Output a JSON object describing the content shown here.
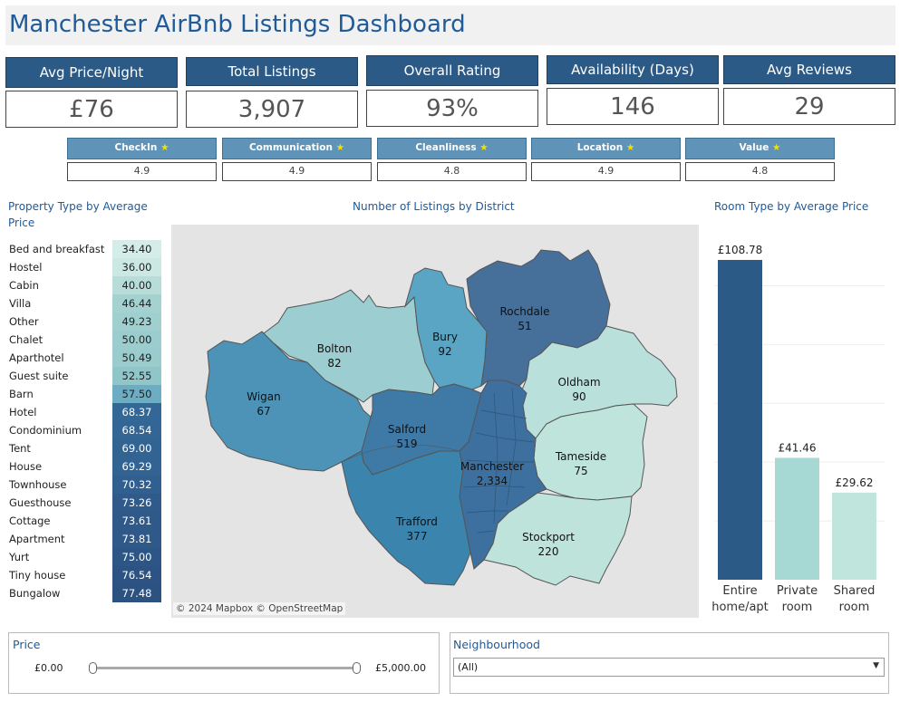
{
  "title": "Manchester AirBnb Listings Dashboard",
  "kpis": [
    {
      "label": "Avg Price/Night",
      "value": "£76"
    },
    {
      "label": "Total Listings",
      "value": "3,907"
    },
    {
      "label": "Overall Rating",
      "value": "93%"
    },
    {
      "label": "Availability (Days)",
      "value": "146"
    },
    {
      "label": "Avg Reviews",
      "value": "29"
    }
  ],
  "subratings": [
    {
      "label": "CheckIn",
      "value": "4.9"
    },
    {
      "label": "Communication",
      "value": "4.9"
    },
    {
      "label": "Cleanliness",
      "value": "4.8"
    },
    {
      "label": "Location",
      "value": "4.9"
    },
    {
      "label": "Value",
      "value": "4.8"
    }
  ],
  "star_glyph": "★",
  "property_section": {
    "title_line1": "Property Type by Average",
    "title_line2": "Price",
    "rows": [
      {
        "label": "Bed and breakfast",
        "value": "34.40",
        "color": "#d4ede8"
      },
      {
        "label": "Hostel",
        "value": "36.00",
        "color": "#cbe8e3"
      },
      {
        "label": "Cabin",
        "value": "40.00",
        "color": "#b8ddd9"
      },
      {
        "label": "Villa",
        "value": "46.44",
        "color": "#a3d2d1"
      },
      {
        "label": "Other",
        "value": "49.23",
        "color": "#a0cfcf"
      },
      {
        "label": "Chalet",
        "value": "50.00",
        "color": "#9ccdce"
      },
      {
        "label": "Aparthotel",
        "value": "50.49",
        "color": "#9acccd"
      },
      {
        "label": "Guest suite",
        "value": "52.55",
        "color": "#90c6ca"
      },
      {
        "label": "Barn",
        "value": "57.50",
        "color": "#6cadc4"
      },
      {
        "label": "Hotel",
        "value": "68.37",
        "color": "#336795"
      },
      {
        "label": "Condominium",
        "value": "68.54",
        "color": "#336694"
      },
      {
        "label": "Tent",
        "value": "69.00",
        "color": "#326493"
      },
      {
        "label": "House",
        "value": "69.29",
        "color": "#326393"
      },
      {
        "label": "Townhouse",
        "value": "70.32",
        "color": "#315f90"
      },
      {
        "label": "Guesthouse",
        "value": "73.26",
        "color": "#2f5a8a"
      },
      {
        "label": "Cottage",
        "value": "73.61",
        "color": "#2f5989"
      },
      {
        "label": "Apartment",
        "value": "73.81",
        "color": "#2e5989"
      },
      {
        "label": "Yurt",
        "value": "75.00",
        "color": "#2d5686"
      },
      {
        "label": "Tiny house",
        "value": "76.54",
        "color": "#2c5383"
      },
      {
        "label": "Bungalow",
        "value": "77.48",
        "color": "#2b5281"
      }
    ]
  },
  "map_section": {
    "title": "Number of Listings by District",
    "attribution": "© 2024 Mapbox © OpenStreetMap",
    "districts": [
      {
        "name": "Rochdale",
        "count": "51"
      },
      {
        "name": "Bolton",
        "count": "82"
      },
      {
        "name": "Bury",
        "count": "92"
      },
      {
        "name": "Oldham",
        "count": "90"
      },
      {
        "name": "Wigan",
        "count": "67"
      },
      {
        "name": "Salford",
        "count": "519"
      },
      {
        "name": "Tameside",
        "count": "75"
      },
      {
        "name": "Manchester",
        "count": "2,334"
      },
      {
        "name": "Trafford",
        "count": "377"
      },
      {
        "name": "Stockport",
        "count": "220"
      }
    ]
  },
  "room_section": {
    "title": "Room Type by Average Price"
  },
  "chart_data": {
    "type": "bar",
    "title": "Room Type by Average Price",
    "categories": [
      "Entire home/apt",
      "Private room",
      "Shared room"
    ],
    "category_lines": [
      [
        "Entire",
        "home/apt"
      ],
      [
        "Private",
        "room"
      ],
      [
        "Shared",
        "room"
      ]
    ],
    "values": [
      108.78,
      41.46,
      29.62
    ],
    "value_labels": [
      "£108.78",
      "£41.46",
      "£29.62"
    ],
    "colors": [
      "#2c5a86",
      "#a6d8d4",
      "#bfe5dc"
    ],
    "ylim": [
      0,
      110
    ],
    "grid": true
  },
  "filters": {
    "price": {
      "title": "Price",
      "min_label": "£0.00",
      "max_label": "£5,000.00"
    },
    "neighbourhood": {
      "title": "Neighbourhood",
      "selected": "(All)"
    }
  }
}
